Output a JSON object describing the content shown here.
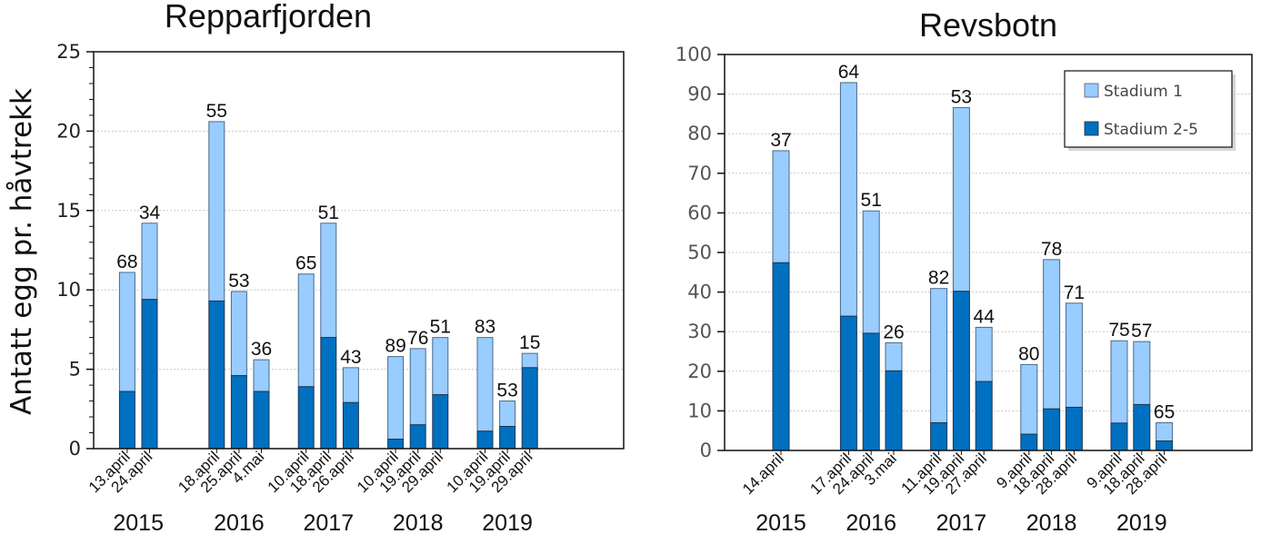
{
  "chart_data": [
    {
      "type": "bar",
      "stacked": true,
      "title": "Repparfjorden",
      "ylabel": "Antatt egg pr. håvtrekk",
      "xlabel": "",
      "ylim": [
        0,
        25
      ],
      "yticks": [
        0,
        5,
        10,
        15,
        20,
        25
      ],
      "grid": true,
      "legend": null,
      "categories": [
        "13.april",
        "24.april",
        "18.april",
        "25.april",
        "4.mai",
        "10.april",
        "18.april",
        "26.april",
        "10.april",
        "19.april",
        "29.april",
        "10.april",
        "19.april",
        "29.april"
      ],
      "years": [
        "2015",
        "2015",
        "2016",
        "2016",
        "2016",
        "2017",
        "2017",
        "2017",
        "2018",
        "2018",
        "2018",
        "2019",
        "2019",
        "2019"
      ],
      "year_labels": [
        "2015",
        "2016",
        "2017",
        "2018",
        "2019"
      ],
      "series": [
        {
          "name": "Stadium 2-5",
          "color": "#0070C0",
          "values": [
            3.6,
            9.4,
            9.3,
            4.6,
            3.6,
            3.9,
            7.0,
            2.9,
            0.6,
            1.5,
            3.4,
            1.1,
            1.4,
            5.1
          ]
        },
        {
          "name": "Stadium 1",
          "color": "#99CCFF",
          "values": [
            7.5,
            4.8,
            11.3,
            5.3,
            2.0,
            7.1,
            7.2,
            2.2,
            5.2,
            4.8,
            3.6,
            5.9,
            1.6,
            0.9
          ]
        }
      ],
      "totals": [
        11.1,
        14.2,
        20.6,
        9.9,
        5.6,
        11.0,
        14.2,
        5.1,
        5.8,
        6.3,
        7.0,
        7.0,
        3.0,
        6.0
      ],
      "data_labels": [
        "68",
        "34",
        "55",
        "53",
        "36",
        "65",
        "51",
        "43",
        "89",
        "76",
        "51",
        "83",
        "53",
        "15"
      ]
    },
    {
      "type": "bar",
      "stacked": true,
      "title": "Revsbotn",
      "ylabel": "",
      "xlabel": "",
      "ylim": [
        0,
        100
      ],
      "yticks": [
        0,
        10,
        20,
        30,
        40,
        50,
        60,
        70,
        80,
        90,
        100
      ],
      "grid": true,
      "legend": "top-right",
      "categories": [
        "14.april",
        "17.april",
        "24.april",
        "3.mai",
        "11.april",
        "19.april",
        "27.april",
        "9.april",
        "18.april",
        "28.april",
        "9.april",
        "18.april",
        "28.april"
      ],
      "years": [
        "2015",
        "2016",
        "2016",
        "2016",
        "2017",
        "2017",
        "2017",
        "2018",
        "2018",
        "2018",
        "2019",
        "2019",
        "2019"
      ],
      "year_labels": [
        "2015",
        "2016",
        "2017",
        "2018",
        "2019"
      ],
      "series": [
        {
          "name": "Stadium 2-5",
          "color": "#0070C0",
          "values": [
            47.4,
            33.9,
            29.6,
            20.1,
            7.0,
            40.2,
            17.4,
            4.1,
            10.5,
            10.9,
            6.9,
            11.6,
            2.4
          ]
        },
        {
          "name": "Stadium 1",
          "color": "#99CCFF",
          "values": [
            28.3,
            59.0,
            30.9,
            7.1,
            33.9,
            46.4,
            13.7,
            17.6,
            37.7,
            26.3,
            20.8,
            15.9,
            4.6
          ]
        }
      ],
      "totals": [
        75.7,
        92.9,
        60.5,
        27.2,
        40.9,
        86.6,
        31.1,
        21.7,
        48.2,
        37.2,
        27.7,
        27.5,
        7.0
      ],
      "data_labels": [
        "37",
        "64",
        "51",
        "26",
        "82",
        "53",
        "44",
        "80",
        "78",
        "71",
        "75",
        "57",
        "65"
      ]
    }
  ],
  "legend": {
    "items": [
      {
        "label": "Stadium 1",
        "color": "#99CCFF"
      },
      {
        "label": "Stadium 2-5",
        "color": "#0070C0"
      }
    ]
  }
}
